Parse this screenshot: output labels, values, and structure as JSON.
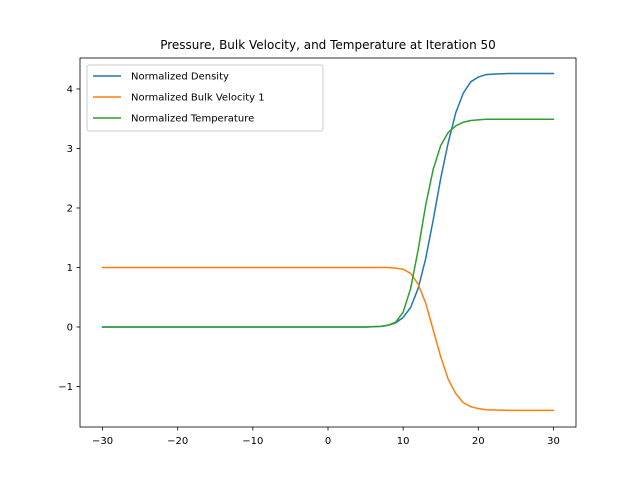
{
  "chart_data": {
    "type": "line",
    "title": "Pressure, Bulk Velocity, and Temperature at Iteration 50",
    "xlabel": "",
    "ylabel": "",
    "xlim": [
      -33.0,
      33.0
    ],
    "ylim": [
      -1.68,
      4.52
    ],
    "xticks": [
      -30,
      -20,
      -10,
      0,
      10,
      20,
      30
    ],
    "xtick_labels": [
      "−30",
      "−20",
      "−10",
      "0",
      "10",
      "20",
      "30"
    ],
    "yticks": [
      -1,
      0,
      1,
      2,
      3,
      4
    ],
    "ytick_labels": [
      "−1",
      "0",
      "1",
      "2",
      "3",
      "4"
    ],
    "grid": false,
    "legend": "upper-left",
    "x": [
      -30,
      -20,
      -10,
      0,
      5,
      7,
      8,
      9,
      10,
      11,
      12,
      13,
      14,
      15,
      16,
      17,
      18,
      19,
      20,
      21,
      22,
      24,
      26,
      28,
      30
    ],
    "series": [
      {
        "name": "Normalized Density",
        "color": "#1f77b4",
        "values": [
          0.0,
          0.0,
          0.0,
          0.0,
          0.0,
          0.01,
          0.03,
          0.07,
          0.16,
          0.33,
          0.65,
          1.15,
          1.8,
          2.5,
          3.1,
          3.6,
          3.93,
          4.12,
          4.2,
          4.24,
          4.25,
          4.26,
          4.26,
          4.26,
          4.26
        ]
      },
      {
        "name": "Normalized Bulk Velocity 1",
        "color": "#ff7f0e",
        "values": [
          1.0,
          1.0,
          1.0,
          1.0,
          1.0,
          1.0,
          1.0,
          0.99,
          0.97,
          0.9,
          0.72,
          0.4,
          -0.05,
          -0.5,
          -0.88,
          -1.12,
          -1.27,
          -1.34,
          -1.37,
          -1.39,
          -1.395,
          -1.4,
          -1.4,
          -1.4,
          -1.4
        ]
      },
      {
        "name": "Normalized Temperature",
        "color": "#2ca02c",
        "values": [
          0.0,
          0.0,
          0.0,
          0.0,
          0.0,
          0.01,
          0.03,
          0.08,
          0.25,
          0.65,
          1.3,
          2.05,
          2.65,
          3.05,
          3.27,
          3.38,
          3.44,
          3.47,
          3.48,
          3.49,
          3.49,
          3.49,
          3.49,
          3.49,
          3.49
        ]
      }
    ]
  }
}
